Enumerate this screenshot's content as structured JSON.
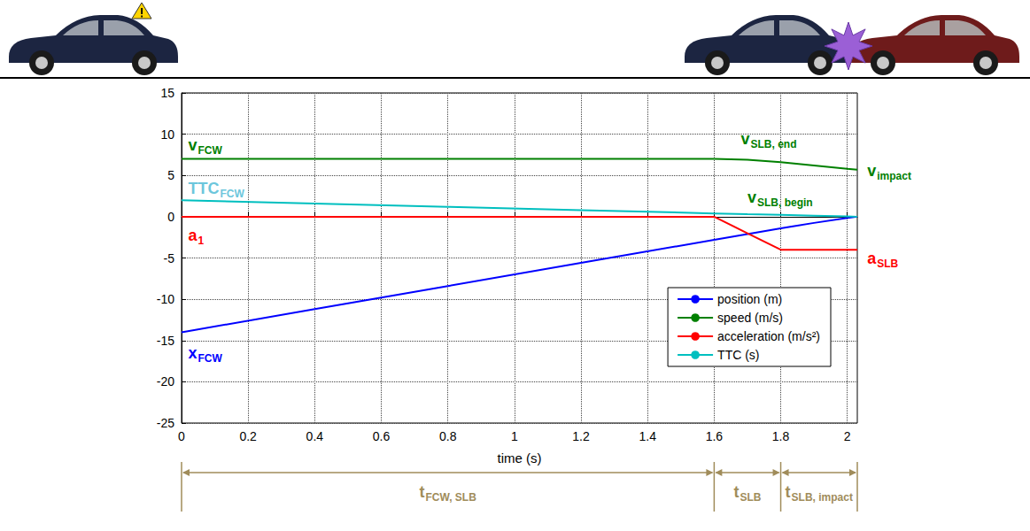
{
  "chart_data": {
    "type": "line",
    "x_label": "time (s)",
    "xlim": [
      0,
      2.03
    ],
    "xticks": [
      0,
      0.2,
      0.4,
      0.6,
      0.8,
      1,
      1.2,
      1.4,
      1.6,
      1.8,
      2
    ],
    "ylim": [
      -25,
      15
    ],
    "yticks": [
      -25,
      -20,
      -15,
      -10,
      -5,
      0,
      5,
      10,
      15
    ],
    "grid": true,
    "legend": "lower right",
    "x": [
      0,
      0.4,
      0.8,
      1.2,
      1.6,
      1.7,
      1.8,
      1.9,
      2.0,
      2.03
    ],
    "series": [
      {
        "name": "position (m)",
        "color": "#0000ff",
        "values": [
          -14,
          -11.2,
          -8.4,
          -5.6,
          -2.8,
          -2.1,
          -1.4,
          -0.75,
          -0.15,
          0
        ]
      },
      {
        "name": "speed (m/s)",
        "color": "#008000",
        "values": [
          7,
          7,
          7,
          7,
          7,
          6.9,
          6.6,
          6.2,
          5.8,
          5.7
        ]
      },
      {
        "name": "acceleration (m/s²)",
        "color": "#ff0000",
        "values": [
          0,
          0,
          0,
          0,
          0,
          -2,
          -4,
          -4,
          -4,
          -4
        ]
      },
      {
        "name": "TTC (s)",
        "color": "#00bfbf",
        "values": [
          2,
          1.6,
          1.2,
          0.8,
          0.4,
          0.3,
          0.22,
          0.12,
          0.03,
          0
        ]
      }
    ],
    "annotations": [
      {
        "text": "v",
        "subscript": "FCW",
        "x": 0.02,
        "y": 8.7,
        "color": "#008000"
      },
      {
        "text": "TTC",
        "subscript": "FCW",
        "x": 0.02,
        "y": 3.4,
        "color": "#6cc6dc"
      },
      {
        "text": "a",
        "subscript": "1",
        "x": 0.02,
        "y": -2.3,
        "color": "#ff0000"
      },
      {
        "text": "x",
        "subscript": "FCW",
        "x": 0.02,
        "y": -16.5,
        "color": "#0000ff"
      },
      {
        "text": "v",
        "subscript": "SLB, end",
        "x": 1.68,
        "y": 9.4,
        "color": "#008000"
      },
      {
        "text": "v",
        "subscript": "SLB, begin",
        "x": 1.7,
        "y": 2.3,
        "color": "#008000"
      },
      {
        "text": "v",
        "subscript": "impact",
        "x": 2.06,
        "y": 5.6,
        "color": "#008000"
      },
      {
        "text": "a",
        "subscript": "SLB",
        "x": 2.06,
        "y": -5,
        "color": "#ff0000"
      }
    ],
    "intervals": [
      {
        "text": "t",
        "subscript": "FCW, SLB",
        "from": 0,
        "to": 1.6
      },
      {
        "text": "t",
        "subscript": "SLB",
        "from": 1.6,
        "to": 1.8
      },
      {
        "text": "t",
        "subscript": "SLB, impact",
        "from": 1.8,
        "to": 2.03
      }
    ]
  }
}
